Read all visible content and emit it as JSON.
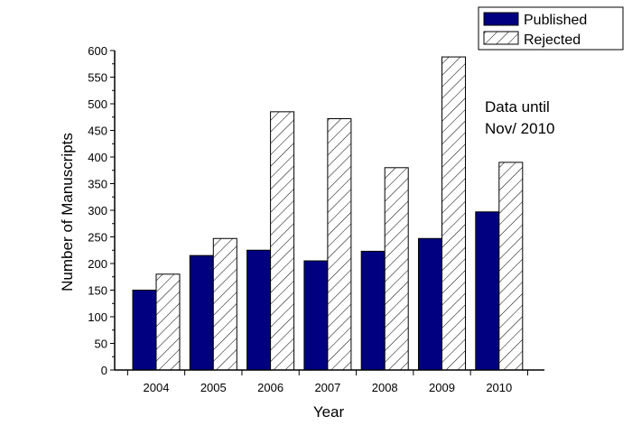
{
  "chart_data": {
    "type": "bar",
    "categories": [
      "2004",
      "2005",
      "2006",
      "2007",
      "2008",
      "2009",
      "2010"
    ],
    "series": [
      {
        "name": "Published",
        "values": [
          150,
          215,
          225,
          205,
          223,
          247,
          297
        ],
        "color": "#000080",
        "fill": "solid"
      },
      {
        "name": "Rejected",
        "values": [
          180,
          247,
          485,
          472,
          380,
          588,
          390
        ],
        "color": "#ffffff",
        "fill": "hatched"
      }
    ],
    "title": "",
    "xlabel": "Year",
    "ylabel": "Number of Manuscripts",
    "ylim": [
      0,
      600
    ],
    "yticks": [
      0,
      50,
      100,
      150,
      200,
      250,
      300,
      350,
      400,
      450,
      500,
      550,
      600
    ],
    "grid": false,
    "legend_position": "top-right",
    "annotation": [
      "Data until",
      "Nov/ 2010"
    ]
  }
}
